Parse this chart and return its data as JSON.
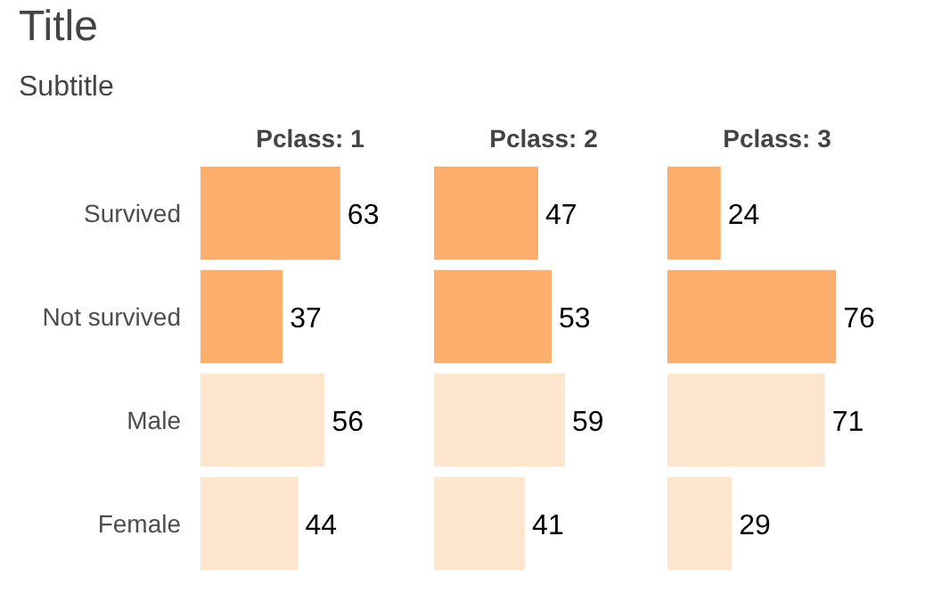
{
  "chart_data": [
    {
      "type": "other",
      "title": "Title",
      "subtitle": "Subtitle"
    },
    {
      "type": "bar",
      "orientation": "horizontal",
      "title": "Pclass: 1",
      "categories": [
        "Survived",
        "Not survived",
        "Male",
        "Female"
      ],
      "values": [
        63,
        37,
        56,
        44
      ],
      "colors": [
        "#fdae6b",
        "#fdae6b",
        "#fee6ce",
        "#fee6ce"
      ],
      "data_labels": true,
      "tick_labels": "y"
    },
    {
      "type": "bar",
      "orientation": "horizontal",
      "title": "Pclass: 2",
      "categories": [
        null,
        null,
        null,
        null
      ],
      "values": [
        47,
        53,
        59,
        41
      ],
      "colors": [
        "#fdae6b",
        "#fdae6b",
        "#fee6ce",
        "#fee6ce"
      ],
      "data_labels": true,
      "tick_labels": false
    },
    {
      "type": "bar",
      "orientation": "horizontal",
      "title": "Pclass: 3",
      "categories": [
        null,
        null,
        null,
        null
      ],
      "values": [
        24,
        76,
        71,
        29
      ],
      "colors": [
        "#fdae6b",
        "#fdae6b",
        "#fee6ce",
        "#fee6ce"
      ],
      "data_labels": true,
      "tick_labels": false
    }
  ]
}
